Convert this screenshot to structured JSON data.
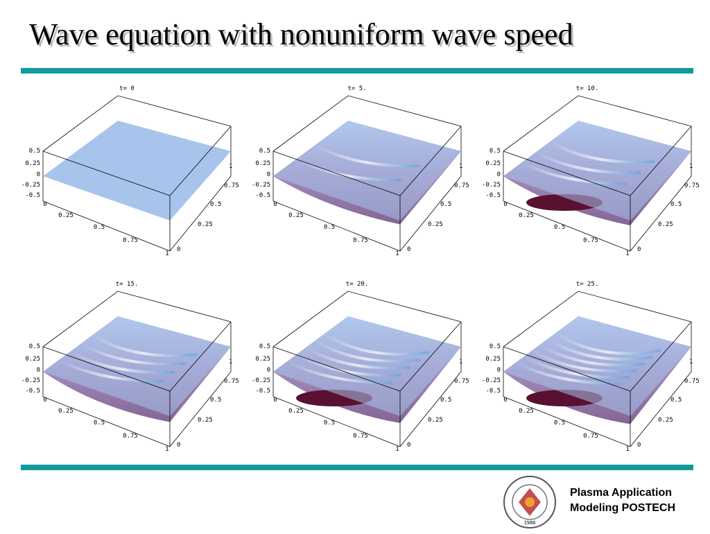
{
  "title": "Wave equation with nonuniform wave speed",
  "plots": [
    {
      "label": "t= 0"
    },
    {
      "label": "t= 5."
    },
    {
      "label": "t= 10."
    },
    {
      "label": "t= 15."
    },
    {
      "label": "t= 20."
    },
    {
      "label": "t= 25."
    }
  ],
  "axes": {
    "z_ticks": [
      0.5,
      0.25,
      0,
      -0.25,
      -0.5
    ],
    "x_ticks": [
      0,
      0.25,
      0.5,
      0.75,
      1
    ],
    "y_ticks": [
      0,
      0.25,
      0.5,
      0.75,
      1
    ]
  },
  "logo": {
    "year": "1986"
  },
  "footer": {
    "line1": "Plasma Application",
    "line2": "Modeling POSTECH"
  }
}
